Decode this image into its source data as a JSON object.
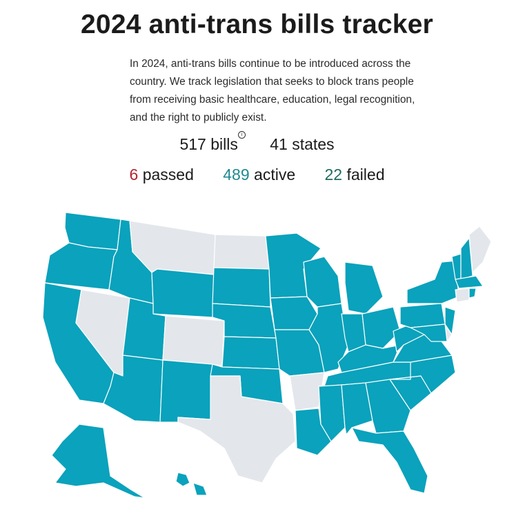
{
  "page": {
    "title": "2024 anti-trans bills tracker",
    "intro": "In 2024, anti-trans bills continue to be introduced across the country. We track legislation that seeks to block trans people from receiving basic healthcare, education, legal recognition, and the right to publicly exist."
  },
  "stats": {
    "bills": "517 bills",
    "states": "41 states",
    "passed_num": "6",
    "passed_label": "passed",
    "active_num": "489",
    "active_label": "active",
    "failed_num": "22",
    "failed_label": "failed"
  },
  "colors": {
    "active_state": "#0aa2bc",
    "no_bill_state": "#e3e7ec",
    "passed": "#b3262e",
    "active": "#1e8a8f",
    "failed": "#1f6b5d"
  },
  "icons": {
    "info": "info-icon"
  }
}
